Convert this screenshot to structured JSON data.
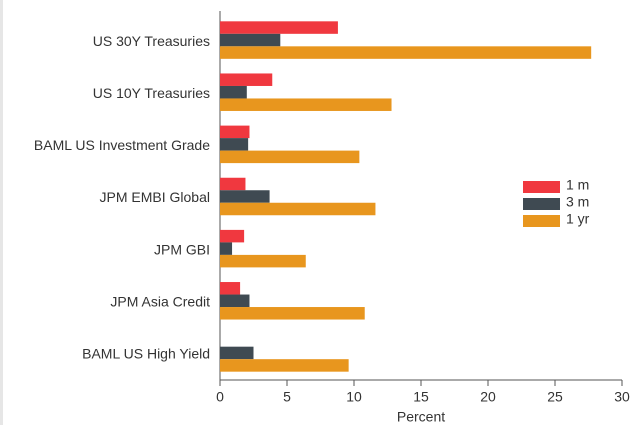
{
  "chart_data": {
    "type": "bar",
    "orientation": "horizontal",
    "categories": [
      "US 30Y Treasuries",
      "US 10Y Treasuries",
      "BAML US Investment Grade",
      "JPM EMBI Global",
      "JPM GBI",
      "JPM Asia Credit",
      "BAML US High Yield"
    ],
    "series": [
      {
        "name": "1 m",
        "color": "#f0383f",
        "values": [
          8.8,
          3.9,
          2.2,
          1.9,
          1.8,
          1.5,
          0
        ]
      },
      {
        "name": "3 m",
        "color": "#3f4a52",
        "values": [
          4.5,
          2.0,
          2.1,
          3.7,
          0.9,
          2.2,
          2.5
        ]
      },
      {
        "name": "1 yr",
        "color": "#e8961e",
        "values": [
          27.7,
          12.8,
          10.4,
          11.6,
          6.4,
          10.8,
          9.6
        ]
      }
    ],
    "xlabel": "Percent",
    "xlim": [
      0,
      30
    ],
    "xticks": [
      0,
      5,
      10,
      15,
      20,
      25,
      30
    ],
    "legend": "right"
  }
}
